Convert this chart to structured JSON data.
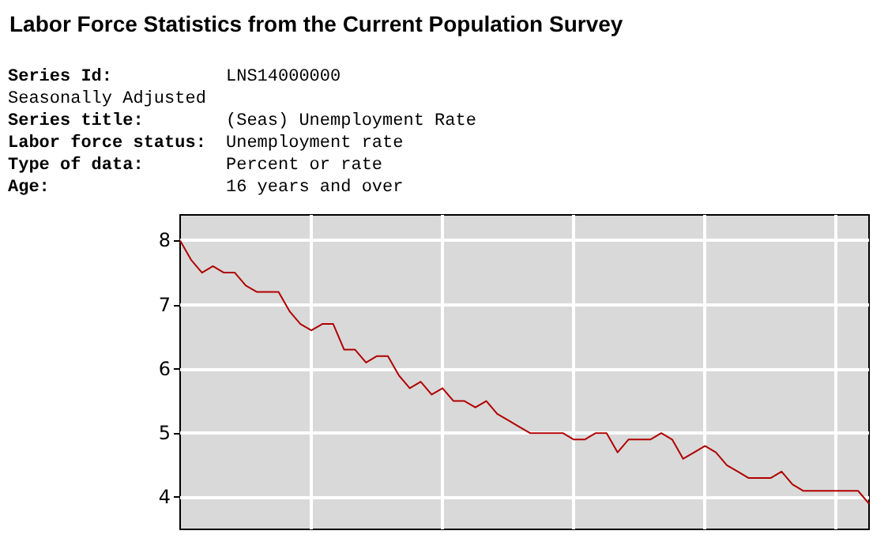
{
  "chart_data": {
    "type": "line",
    "title": "Labor Force Statistics from the Current Population Survey",
    "annotations": [
      "Series Id:\tLNS14000000",
      "Seasonally Adjusted",
      "Series title:\t(Seas) Unemployment Rate",
      "Labor force status:\tUnemployment rate",
      "Type of data:\tPercent or rate",
      "Age:\t16 years and over"
    ],
    "categories": [
      null,
      null,
      null,
      null,
      null,
      null,
      null,
      null,
      null,
      null,
      null,
      null,
      null,
      null,
      null,
      null,
      null,
      null,
      null,
      null,
      null,
      null,
      null,
      null,
      null,
      null,
      null,
      null,
      null,
      null,
      null,
      null,
      null,
      null,
      null,
      null,
      null,
      null,
      null,
      null,
      null,
      null,
      null,
      null,
      null,
      null,
      null,
      null,
      null,
      null,
      null,
      null,
      null,
      null,
      null,
      null,
      null,
      null,
      null,
      null,
      null,
      null,
      null,
      null
    ],
    "series": [
      {
        "color": "#b00000",
        "values": [
          8.0,
          7.7,
          7.5,
          7.6,
          7.5,
          7.5,
          7.3,
          7.2,
          7.2,
          7.2,
          6.9,
          6.7,
          6.6,
          6.7,
          6.7,
          6.3,
          6.3,
          6.1,
          6.2,
          6.2,
          5.9,
          5.7,
          5.8,
          5.6,
          5.7,
          5.5,
          5.5,
          5.4,
          5.5,
          5.3,
          5.2,
          5.1,
          5.0,
          5.0,
          5.0,
          5.0,
          4.9,
          4.9,
          5.0,
          5.0,
          4.7,
          4.9,
          4.9,
          4.9,
          5.0,
          4.9,
          4.6,
          4.7,
          4.8,
          4.7,
          4.5,
          4.4,
          4.3,
          4.3,
          4.3,
          4.4,
          4.2,
          4.1,
          4.1,
          4.1,
          4.1,
          4.1,
          4.1,
          3.9
        ]
      }
    ],
    "ylim": [
      3.5,
      8.4
    ],
    "yticks": [
      4,
      5,
      6,
      7,
      8
    ],
    "grid": true,
    "marker": "none",
    "line_style": "solid"
  }
}
